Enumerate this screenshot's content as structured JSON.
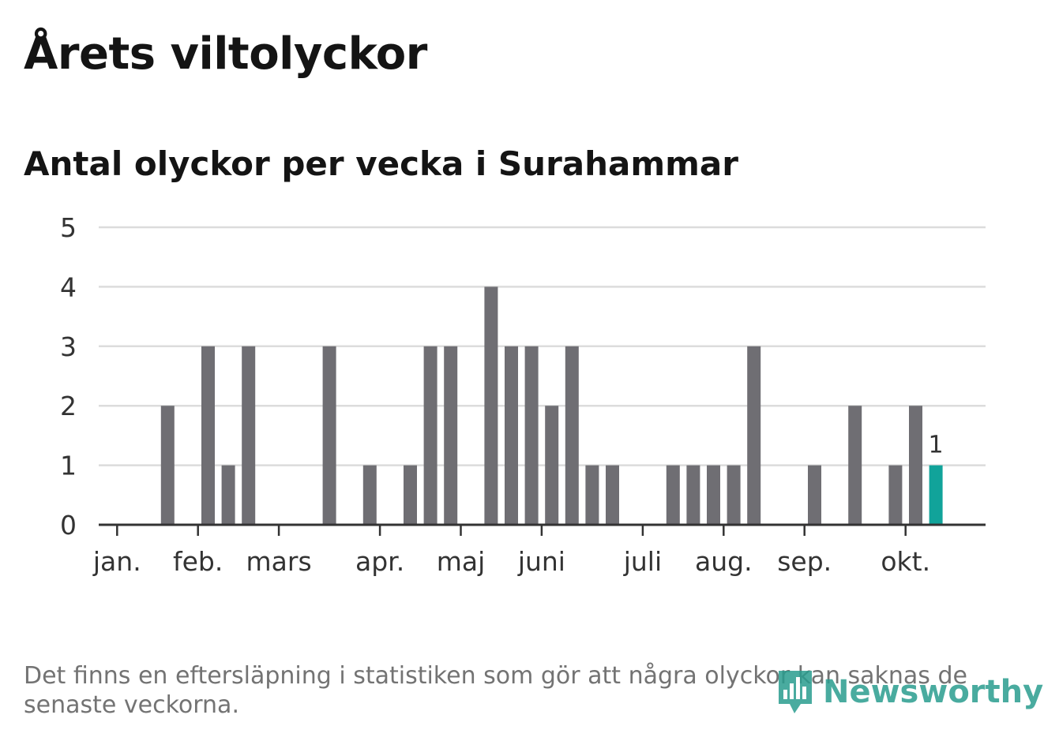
{
  "header": {
    "title": "Årets viltolyckor",
    "subtitle": "Antal olyckor per vecka i Surahammar"
  },
  "footer": {
    "note": "Det finns en eftersläpning i statistiken som gör att några olyckor kan saknas de senaste veckorna.",
    "logo_text": "Newsworthy",
    "logo_icon": "newsworthy-bar-chart-icon"
  },
  "colors": {
    "bar": "#6f6e73",
    "highlight": "#11a39a",
    "grid": "#dcdcdc",
    "axis": "#333333",
    "text": "#333333",
    "logo": "#2a9d8f"
  },
  "chart_data": {
    "type": "bar",
    "x": [
      1,
      2,
      3,
      4,
      5,
      6,
      7,
      8,
      9,
      10,
      11,
      12,
      13,
      14,
      15,
      16,
      17,
      18,
      19,
      20,
      21,
      22,
      23,
      24,
      25,
      26,
      27,
      28,
      29,
      30,
      31,
      32,
      33,
      34,
      35,
      36,
      37,
      38,
      39,
      40,
      41,
      42
    ],
    "values": [
      0,
      0,
      0,
      2,
      0,
      3,
      1,
      3,
      0,
      0,
      0,
      3,
      0,
      1,
      0,
      1,
      3,
      3,
      0,
      4,
      3,
      3,
      2,
      3,
      1,
      1,
      0,
      0,
      1,
      1,
      1,
      1,
      3,
      0,
      0,
      1,
      0,
      2,
      0,
      1,
      2,
      1
    ],
    "ylim": [
      0,
      5
    ],
    "yticks": [
      0,
      1,
      2,
      3,
      4,
      5
    ],
    "month_ticks": [
      {
        "label": "jan.",
        "pos": 1.5
      },
      {
        "label": "feb.",
        "pos": 5.5
      },
      {
        "label": "mars",
        "pos": 9.5
      },
      {
        "label": "apr.",
        "pos": 14.5
      },
      {
        "label": "maj",
        "pos": 18.5
      },
      {
        "label": "juni",
        "pos": 22.5
      },
      {
        "label": "juli",
        "pos": 27.5
      },
      {
        "label": "aug.",
        "pos": 31.5
      },
      {
        "label": "sep.",
        "pos": 35.5
      },
      {
        "label": "okt.",
        "pos": 40.5
      }
    ],
    "highlight_last": true,
    "last_value_label": "1",
    "grid": true
  }
}
